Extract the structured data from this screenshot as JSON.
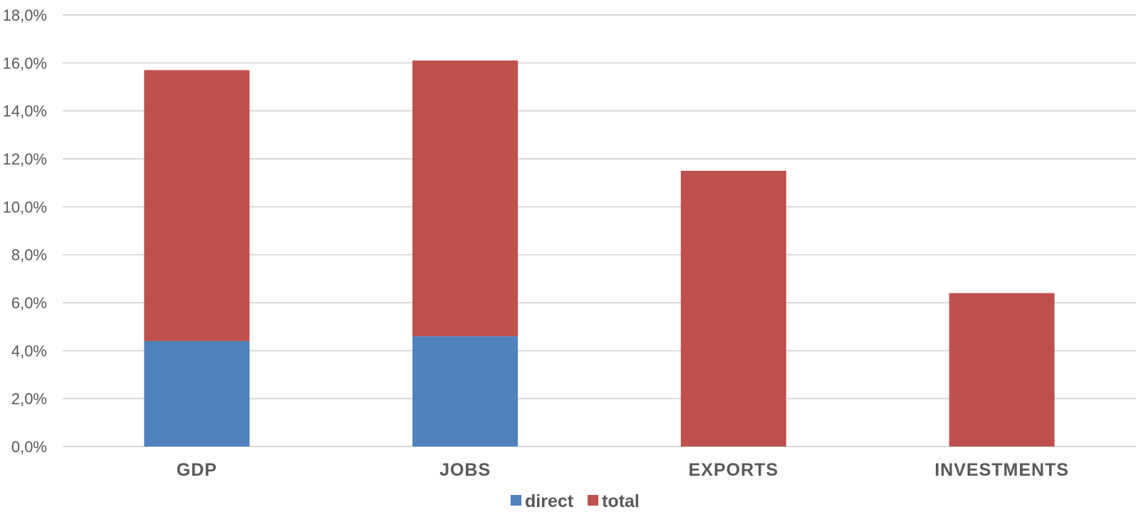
{
  "chart_data": {
    "type": "bar",
    "stacked": true,
    "title": "",
    "xlabel": "",
    "ylabel": "",
    "categories": [
      "GDP",
      "JOBS",
      "EXPORTS",
      "INVESTMENTS"
    ],
    "series": [
      {
        "name": "direct",
        "values": [
          4.4,
          4.6,
          0,
          0
        ],
        "color": "#4f81bd"
      },
      {
        "name": "total",
        "values": [
          11.3,
          11.5,
          11.5,
          6.4
        ],
        "color": "#c0504d"
      }
    ],
    "ylim": [
      0,
      18
    ],
    "y_ticks": [
      "0,0%",
      "2,0%",
      "4,0%",
      "6,0%",
      "8,0%",
      "10,0%",
      "12,0%",
      "14,0%",
      "16,0%",
      "18,0%"
    ],
    "grid": true,
    "legend_position": "bottom-center",
    "colors": {
      "direct": "#4f81bd",
      "total": "#c0504d",
      "grid": "#d9d9d9",
      "text": "#595959"
    }
  }
}
